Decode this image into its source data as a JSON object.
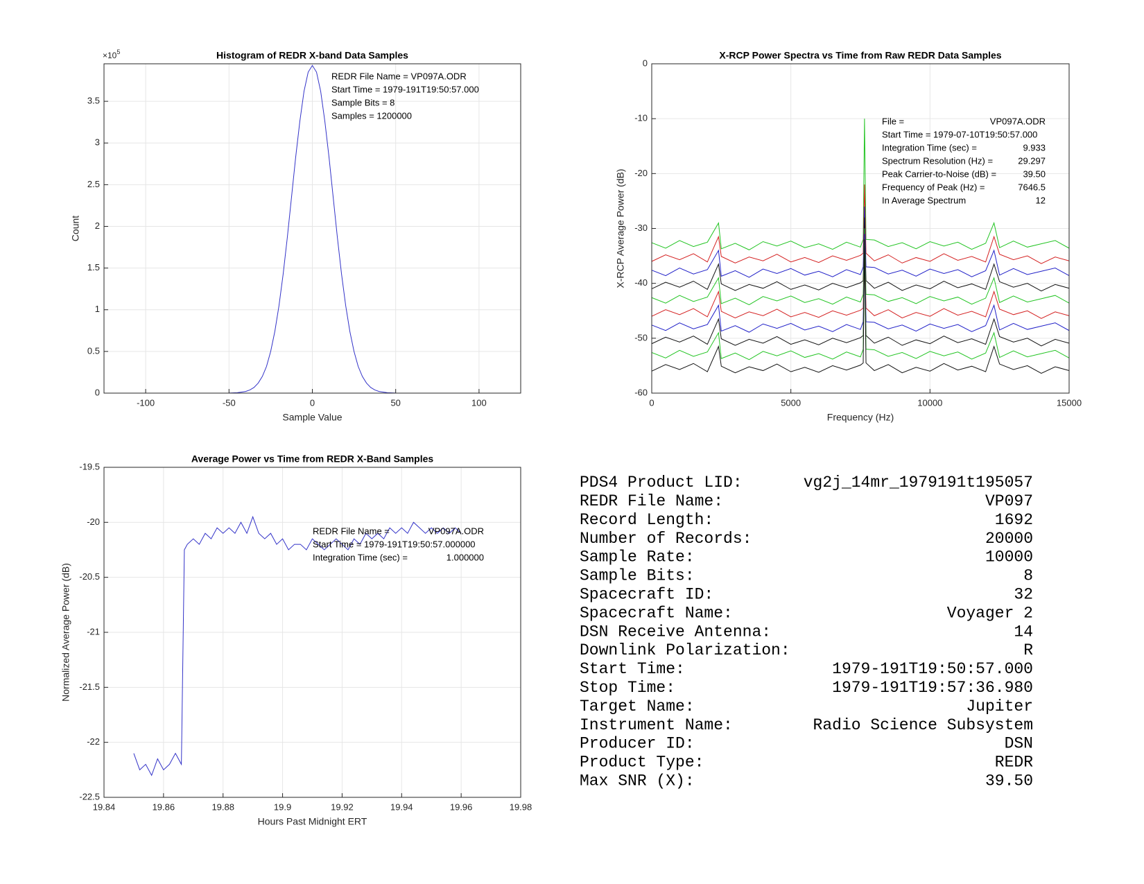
{
  "chart_data": [
    {
      "type": "line",
      "title": "Histogram of REDR X-band Data Samples",
      "x_label": "Sample Value",
      "y_label": "Count",
      "y_multiplier": {
        "base": "×10",
        "exponent": "5"
      },
      "x": [
        -60,
        -55,
        -50,
        -45,
        -40,
        -37.5,
        -35,
        -32.5,
        -30,
        -27.5,
        -25,
        -22.5,
        -20,
        -17.5,
        -15,
        -12.5,
        -10,
        -7.5,
        -5,
        -2.5,
        0,
        2.5,
        5,
        7.5,
        10,
        12.5,
        15,
        17.5,
        20,
        22.5,
        25,
        27.5,
        30,
        32.5,
        35,
        37.5,
        40,
        45,
        50,
        55,
        60,
        65
      ],
      "series": [
        {
          "color": "#3232c8",
          "values": [
            0,
            0,
            0.001,
            0.005,
            0.02,
            0.038,
            0.068,
            0.12,
            0.2,
            0.32,
            0.5,
            0.74,
            1.05,
            1.43,
            1.87,
            2.35,
            2.83,
            3.26,
            3.62,
            3.85,
            3.93,
            3.85,
            3.62,
            3.26,
            2.83,
            2.35,
            1.87,
            1.43,
            1.05,
            0.74,
            0.5,
            0.32,
            0.2,
            0.12,
            0.068,
            0.038,
            0.02,
            0.005,
            0.001,
            0,
            0,
            0
          ]
        }
      ],
      "xlim": [
        -125,
        125
      ],
      "xticks": [
        -100,
        -50,
        0,
        50,
        100
      ],
      "ylim": [
        0,
        3.95
      ],
      "yticks": [
        0,
        0.5,
        1,
        1.5,
        2,
        2.5,
        3,
        3.5
      ],
      "grid": true,
      "annotations": [
        {
          "label": "REDR File Name = VP097A.ODR"
        },
        {
          "label": "Start Time = 1979-191T19:50:57.000"
        },
        {
          "label": "Sample Bits = 8"
        },
        {
          "label": "Samples = 1200000"
        }
      ]
    },
    {
      "type": "line",
      "title": "X-RCP Power Spectra vs Time from Raw REDR Data Samples",
      "x_label": "Frequency (Hz)",
      "y_label": "X-RCP Average Power (dB)",
      "x": [
        0,
        500,
        1000,
        1500,
        2000,
        2400,
        2500,
        3000,
        3500,
        4000,
        4500,
        5000,
        5500,
        6000,
        6500,
        7000,
        7500,
        7600,
        7646.5,
        7700,
        8000,
        8500,
        9000,
        9500,
        10000,
        10500,
        11000,
        11500,
        12000,
        12300,
        12500,
        13000,
        13500,
        14000,
        14500,
        15000
      ],
      "series": [
        {
          "color": "#22c422",
          "values": [
            -32.6,
            -33.6,
            -32.2,
            -33.3,
            -32.5,
            -29,
            -33.7,
            -32.7,
            -33.9,
            -32.4,
            -33.2,
            -32.3,
            -33.5,
            -32.8,
            -33.8,
            -32.5,
            -33.4,
            -32,
            -10,
            -32,
            -32.1,
            -33.3,
            -32.6,
            -33.7,
            -32.4,
            -33.2,
            -32.5,
            -33.8,
            -32.7,
            -29,
            -33.5,
            -32.3,
            -33.4,
            -32.8,
            -32.2,
            -33.6
          ]
        },
        {
          "color": "#d42020",
          "values": [
            -36,
            -34.8,
            -35.7,
            -34.6,
            -36.1,
            -31.5,
            -35.1,
            -36.3,
            -35.2,
            -35.9,
            -34.7,
            -36.1,
            -35.3,
            -36.2,
            -35,
            -35.8,
            -34.9,
            -34.5,
            -22,
            -34.5,
            -35.9,
            -34.8,
            -36.3,
            -35.3,
            -36,
            -34.6,
            -35.8,
            -35.1,
            -36.1,
            -31.5,
            -34.7,
            -35.7,
            -35,
            -36.4,
            -35.2,
            -35.9
          ]
        },
        {
          "color": "#2020c8",
          "values": [
            -37.6,
            -38.6,
            -37.2,
            -38.3,
            -37.5,
            -34,
            -38.7,
            -37.7,
            -38.9,
            -37.4,
            -38.2,
            -37.3,
            -38.5,
            -37.8,
            -38.8,
            -37.5,
            -38.4,
            -37,
            -26,
            -37,
            -37.1,
            -38.3,
            -37.6,
            -38.7,
            -37.4,
            -38.2,
            -37.5,
            -38.8,
            -37.7,
            -34,
            -38.5,
            -37.3,
            -38.4,
            -37.8,
            -37.2,
            -38.6
          ]
        },
        {
          "color": "#111111",
          "values": [
            -41,
            -39.8,
            -40.7,
            -39.6,
            -41.1,
            -36.5,
            -40.1,
            -41.3,
            -40.2,
            -40.9,
            -39.7,
            -41.1,
            -40.3,
            -41.2,
            -40,
            -40.8,
            -39.9,
            -39.5,
            -28,
            -39.5,
            -40.9,
            -39.8,
            -41.3,
            -40.3,
            -41,
            -39.6,
            -40.8,
            -40.1,
            -41.1,
            -36.5,
            -39.7,
            -40.7,
            -40,
            -41.4,
            -40.2,
            -40.9
          ]
        },
        {
          "color": "#22c422",
          "values": [
            -42.6,
            -43.6,
            -42.2,
            -43.3,
            -42.5,
            -39,
            -43.7,
            -42.7,
            -43.9,
            -42.4,
            -43.2,
            -42.3,
            -43.5,
            -42.8,
            -43.8,
            -42.5,
            -43.4,
            -42,
            -30,
            -42,
            -42.1,
            -43.3,
            -42.6,
            -43.7,
            -42.4,
            -43.2,
            -42.5,
            -43.8,
            -42.7,
            -39,
            -43.5,
            -42.3,
            -43.4,
            -42.8,
            -42.2,
            -43.6
          ]
        },
        {
          "color": "#d42020",
          "values": [
            -46,
            -44.8,
            -45.7,
            -44.6,
            -46.1,
            -41.5,
            -45.1,
            -46.3,
            -45.2,
            -45.9,
            -44.7,
            -46.1,
            -45.3,
            -46.2,
            -45,
            -45.8,
            -44.9,
            -44.5,
            -31,
            -44.5,
            -45.9,
            -44.8,
            -46.3,
            -45.3,
            -46,
            -44.6,
            -45.8,
            -45.1,
            -46.1,
            -41.5,
            -44.7,
            -45.7,
            -45,
            -46.4,
            -45.2,
            -45.9
          ]
        },
        {
          "color": "#2020c8",
          "values": [
            -47.6,
            -48.6,
            -47.2,
            -48.3,
            -47.5,
            -44,
            -48.7,
            -47.7,
            -48.9,
            -47.4,
            -48.2,
            -47.3,
            -48.5,
            -47.8,
            -48.8,
            -47.5,
            -48.4,
            -47,
            -31,
            -47,
            -47.1,
            -48.3,
            -47.6,
            -48.7,
            -47.4,
            -48.2,
            -47.5,
            -48.8,
            -47.7,
            -44,
            -48.5,
            -47.3,
            -48.4,
            -47.8,
            -47.2,
            -48.6
          ]
        },
        {
          "color": "#111111",
          "values": [
            -51,
            -49.8,
            -50.7,
            -49.6,
            -51.1,
            -46.5,
            -50.1,
            -51.3,
            -50.2,
            -50.9,
            -49.7,
            -51.1,
            -50.3,
            -51.2,
            -50,
            -50.8,
            -49.9,
            -49.5,
            -32,
            -49.5,
            -50.9,
            -49.8,
            -51.3,
            -50.3,
            -51,
            -49.6,
            -50.8,
            -50.1,
            -51.1,
            -46.5,
            -49.7,
            -50.7,
            -50,
            -51.4,
            -50.2,
            -50.9
          ]
        },
        {
          "color": "#22c422",
          "values": [
            -52.6,
            -53.6,
            -52.2,
            -53.3,
            -52.5,
            -49,
            -53.7,
            -52.7,
            -53.9,
            -52.4,
            -53.2,
            -52.3,
            -53.5,
            -52.8,
            -53.8,
            -52.5,
            -53.4,
            -52,
            -33,
            -52,
            -52.1,
            -53.3,
            -52.6,
            -53.7,
            -52.4,
            -53.2,
            -52.5,
            -53.8,
            -52.7,
            -49,
            -53.5,
            -52.3,
            -53.4,
            -52.8,
            -52.2,
            -53.6
          ]
        },
        {
          "color": "#111111",
          "values": [
            -56,
            -54.8,
            -55.7,
            -54.6,
            -56.1,
            -51.5,
            -55.1,
            -56.3,
            -55.2,
            -55.9,
            -54.7,
            -56.1,
            -55.3,
            -56.2,
            -55,
            -55.8,
            -54.9,
            -54.5,
            -33,
            -54.5,
            -55.9,
            -54.8,
            -56.3,
            -55.3,
            -56,
            -54.6,
            -55.8,
            -55.1,
            -56.1,
            -51.5,
            -54.7,
            -55.7,
            -55,
            -56.4,
            -55.2,
            -55.9
          ]
        }
      ],
      "xlim": [
        0,
        15000
      ],
      "xticks": [
        0,
        5000,
        10000,
        15000
      ],
      "ylim": [
        -60,
        0
      ],
      "yticks": [
        -60,
        -50,
        -40,
        -30,
        -20,
        -10,
        0
      ],
      "grid": true,
      "annotations": [
        {
          "label": "File =",
          "value": "VP097A.ODR"
        },
        {
          "label": "Start Time = 1979-07-10T19:50:57.000"
        },
        {
          "label": "Integration Time (sec) =",
          "value": "9.933"
        },
        {
          "label": "Spectrum Resolution (Hz) =",
          "value": "29.297"
        },
        {
          "label": "Peak Carrier-to-Noise (dB) =",
          "value": "39.50"
        },
        {
          "label": "Frequency of Peak (Hz) =",
          "value": "7646.5"
        },
        {
          "label": "In Average Spectrum",
          "value": "12"
        }
      ]
    },
    {
      "type": "line",
      "title": "Average Power vs Time from REDR X-Band Samples",
      "x_label": "Hours Past Midnight ERT",
      "y_label": "Normalized Average Power (dB)",
      "x": [
        19.85,
        19.852,
        19.854,
        19.856,
        19.858,
        19.86,
        19.862,
        19.864,
        19.866,
        19.867,
        19.868,
        19.87,
        19.872,
        19.874,
        19.876,
        19.878,
        19.88,
        19.882,
        19.884,
        19.886,
        19.888,
        19.89,
        19.892,
        19.894,
        19.896,
        19.898,
        19.9,
        19.902,
        19.904,
        19.906,
        19.908,
        19.91,
        19.912,
        19.914,
        19.916,
        19.918,
        19.92,
        19.922,
        19.924,
        19.926,
        19.928,
        19.93,
        19.932,
        19.934,
        19.936,
        19.938,
        19.94,
        19.942,
        19.944,
        19.946,
        19.948,
        19.95,
        19.952,
        19.954,
        19.956,
        19.958,
        19.96
      ],
      "series": [
        {
          "color": "#3232c8",
          "values": [
            -22.1,
            -22.25,
            -22.2,
            -22.3,
            -22.15,
            -22.25,
            -22.2,
            -22.1,
            -22.2,
            -20.25,
            -20.2,
            -20.15,
            -20.2,
            -20.1,
            -20.15,
            -20.05,
            -20.1,
            -20.05,
            -20.1,
            -20,
            -20.1,
            -19.95,
            -20.1,
            -20.15,
            -20.1,
            -20.2,
            -20.15,
            -20.25,
            -20.2,
            -20.2,
            -20.25,
            -20.15,
            -20.2,
            -20.25,
            -20.2,
            -20.15,
            -20.2,
            -20.25,
            -20.15,
            -20.2,
            -20.1,
            -20.15,
            -20.1,
            -20.15,
            -20.05,
            -20.1,
            -20.05,
            -20.1,
            -20,
            -20.05,
            -20.1,
            -20.05,
            -20.1,
            -20.05,
            -20.1,
            -20.05,
            -20.1
          ]
        }
      ],
      "xlim": [
        19.84,
        19.98
      ],
      "xticks": [
        19.84,
        19.86,
        19.88,
        19.9,
        19.92,
        19.94,
        19.96,
        19.98
      ],
      "ylim": [
        -22.5,
        -19.5
      ],
      "yticks": [
        -22.5,
        -22,
        -21.5,
        -21,
        -20.5,
        -20,
        -19.5
      ],
      "grid": true,
      "annotations": [
        {
          "label": "REDR File Name =",
          "value": "VP097A.ODR"
        },
        {
          "label": "Start Time = 1979-191T19:50:57.000000"
        },
        {
          "label": "Integration Time (sec) =",
          "value": "1.000000"
        }
      ]
    }
  ],
  "table": {
    "rows": [
      [
        "PDS4 Product LID:",
        "vg2j_14mr_1979191t195057"
      ],
      [
        "REDR File Name:",
        "VP097"
      ],
      [
        "Record Length:",
        "1692"
      ],
      [
        "Number of Records:",
        "20000"
      ],
      [
        "Sample Rate:",
        "10000"
      ],
      [
        "Sample Bits:",
        "8"
      ],
      [
        "Spacecraft ID:",
        "32"
      ],
      [
        "Spacecraft Name:",
        "Voyager 2"
      ],
      [
        "DSN Receive Antenna:",
        "14"
      ],
      [
        "Downlink Polarization:",
        "R"
      ],
      [
        "Start Time:",
        "1979-191T19:50:57.000"
      ],
      [
        "Stop Time:",
        "1979-191T19:57:36.980"
      ],
      [
        "Target Name:",
        "Jupiter"
      ],
      [
        "Instrument Name:",
        "Radio Science Subsystem"
      ],
      [
        "Producer ID:",
        "DSN"
      ],
      [
        "Product Type:",
        "REDR"
      ],
      [
        "Max SNR (X):",
        "39.50"
      ]
    ]
  }
}
